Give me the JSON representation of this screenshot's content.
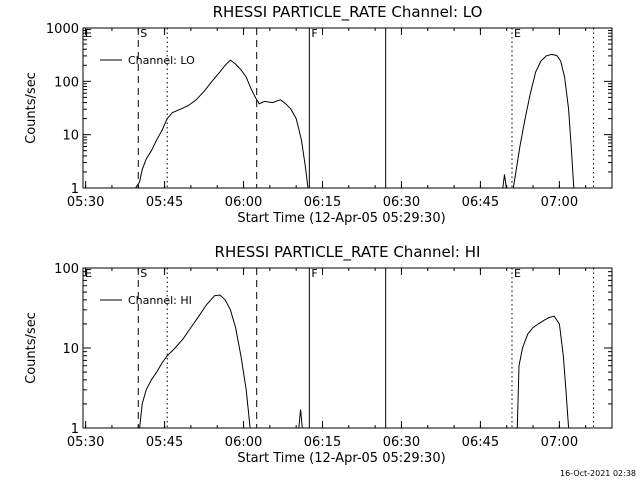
{
  "footer": "16-Oct-2021 02:38",
  "chart_data": [
    {
      "type": "line",
      "title": "RHESSI PARTICLE_RATE Channel: LO",
      "xlabel": "Start Time (12-Apr-05 05:29:30)",
      "ylabel": "Counts/sec",
      "yscale": "log",
      "xlim": [
        "05:29:30",
        "07:10:00"
      ],
      "ylim": [
        1,
        1000
      ],
      "xticks": [
        "05:30",
        "05:45",
        "06:00",
        "06:15",
        "06:30",
        "06:45",
        "07:00"
      ],
      "yticks": [
        {
          "v": 1,
          "label": "1"
        },
        {
          "v": 10,
          "label": "10"
        },
        {
          "v": 100,
          "label": "100"
        },
        {
          "v": 1000,
          "label": "1000"
        }
      ],
      "legend": {
        "position": "top-left",
        "label": "Channel: LO"
      },
      "markers": [
        {
          "t": "05:29:30",
          "label": "E",
          "style": "none"
        },
        {
          "t": "05:40:00",
          "label": "S",
          "style": "dashed"
        },
        {
          "t": "05:45:30",
          "label": "",
          "style": "dotted"
        },
        {
          "t": "06:02:30",
          "label": "",
          "style": "dashed"
        },
        {
          "t": "06:12:30",
          "label": "F",
          "style": "solid"
        },
        {
          "t": "06:27:00",
          "label": "",
          "style": "solid"
        },
        {
          "t": "06:51:00",
          "label": "E",
          "style": "dotted"
        },
        {
          "t": "07:06:30",
          "label": "",
          "style": "dotted"
        }
      ],
      "series": [
        {
          "segments": [
            [
              [
                "05:39:30",
                1
              ],
              [
                "05:40:15",
                1.3
              ],
              [
                "05:40:45",
                2.2
              ],
              [
                "05:41:30",
                3.5
              ],
              [
                "05:42:30",
                5
              ],
              [
                "05:43:30",
                8
              ],
              [
                "05:44:30",
                12
              ],
              [
                "05:45:30",
                20
              ],
              [
                "05:46:30",
                26
              ],
              [
                "05:48:00",
                30
              ],
              [
                "05:49:30",
                35
              ],
              [
                "05:51:00",
                45
              ],
              [
                "05:52:30",
                65
              ],
              [
                "05:54:00",
                100
              ],
              [
                "05:55:30",
                150
              ],
              [
                "05:56:30",
                200
              ],
              [
                "05:57:30",
                250
              ],
              [
                "05:58:30",
                210
              ],
              [
                "05:59:30",
                165
              ],
              [
                "06:00:30",
                120
              ],
              [
                "06:01:30",
                70
              ],
              [
                "06:02:30",
                45
              ],
              [
                "06:03:00",
                38
              ],
              [
                "06:04:00",
                42
              ],
              [
                "06:05:30",
                40
              ],
              [
                "06:07:00",
                45
              ],
              [
                "06:08:00",
                38
              ],
              [
                "06:09:00",
                30
              ],
              [
                "06:10:00",
                20
              ],
              [
                "06:11:00",
                8
              ],
              [
                "06:11:45",
                2.5
              ],
              [
                "06:12:15",
                1
              ]
            ],
            [
              [
                "06:49:15",
                1
              ],
              [
                "06:49:35",
                1.8
              ],
              [
                "06:49:55",
                1
              ]
            ],
            [
              [
                "06:51:15",
                1
              ],
              [
                "06:51:45",
                2
              ],
              [
                "06:52:30",
                6
              ],
              [
                "06:53:30",
                20
              ],
              [
                "06:54:30",
                60
              ],
              [
                "06:55:30",
                150
              ],
              [
                "06:56:30",
                240
              ],
              [
                "06:57:30",
                300
              ],
              [
                "06:58:30",
                320
              ],
              [
                "06:59:30",
                305
              ],
              [
                "07:00:15",
                240
              ],
              [
                "07:01:00",
                120
              ],
              [
                "07:01:45",
                30
              ],
              [
                "07:02:15",
                6
              ],
              [
                "07:02:45",
                1
              ]
            ]
          ]
        }
      ]
    },
    {
      "type": "line",
      "title": "RHESSI PARTICLE_RATE Channel: HI",
      "xlabel": "Start Time (12-Apr-05 05:29:30)",
      "ylabel": "Counts/sec",
      "yscale": "log",
      "xlim": [
        "05:29:30",
        "07:10:00"
      ],
      "ylim": [
        1,
        100
      ],
      "xticks": [
        "05:30",
        "05:45",
        "06:00",
        "06:15",
        "06:30",
        "06:45",
        "07:00"
      ],
      "yticks": [
        {
          "v": 1,
          "label": "1"
        },
        {
          "v": 10,
          "label": "10"
        },
        {
          "v": 100,
          "label": "100"
        }
      ],
      "legend": {
        "position": "top-left",
        "label": "Channel: HI"
      },
      "markers": [
        {
          "t": "05:29:30",
          "label": "E",
          "style": "none"
        },
        {
          "t": "05:40:00",
          "label": "S",
          "style": "dashed"
        },
        {
          "t": "05:45:30",
          "label": "",
          "style": "dotted"
        },
        {
          "t": "06:02:30",
          "label": "",
          "style": "dashed"
        },
        {
          "t": "06:12:30",
          "label": "F",
          "style": "solid"
        },
        {
          "t": "06:27:00",
          "label": "",
          "style": "solid"
        },
        {
          "t": "06:51:00",
          "label": "E",
          "style": "dotted"
        },
        {
          "t": "07:06:30",
          "label": "",
          "style": "dotted"
        }
      ],
      "series": [
        {
          "segments": [
            [
              [
                "05:40:15",
                1
              ],
              [
                "05:40:45",
                2
              ],
              [
                "05:41:30",
                3
              ],
              [
                "05:42:30",
                4
              ],
              [
                "05:43:30",
                5
              ],
              [
                "05:44:30",
                6.5
              ],
              [
                "05:45:30",
                8
              ],
              [
                "05:47:00",
                10
              ],
              [
                "05:48:30",
                13
              ],
              [
                "05:50:00",
                18
              ],
              [
                "05:51:30",
                25
              ],
              [
                "05:53:00",
                35
              ],
              [
                "05:54:30",
                45
              ],
              [
                "05:55:30",
                46
              ],
              [
                "05:56:30",
                40
              ],
              [
                "05:57:30",
                30
              ],
              [
                "05:58:30",
                18
              ],
              [
                "05:59:30",
                8
              ],
              [
                "06:00:30",
                3
              ],
              [
                "06:01:15",
                1
              ]
            ],
            [
              [
                "06:10:30",
                1
              ],
              [
                "06:10:50",
                1.7
              ],
              [
                "06:11:10",
                1
              ]
            ],
            [
              [
                "06:52:00",
                1
              ],
              [
                "06:52:20",
                6
              ],
              [
                "06:53:00",
                10
              ],
              [
                "06:54:00",
                15
              ],
              [
                "06:55:00",
                18
              ],
              [
                "06:56:00",
                20
              ],
              [
                "06:57:00",
                22
              ],
              [
                "06:58:00",
                24
              ],
              [
                "06:59:00",
                25
              ],
              [
                "07:00:00",
                20
              ],
              [
                "07:00:45",
                8
              ],
              [
                "07:01:15",
                3
              ],
              [
                "07:01:45",
                1
              ]
            ]
          ]
        }
      ]
    }
  ]
}
